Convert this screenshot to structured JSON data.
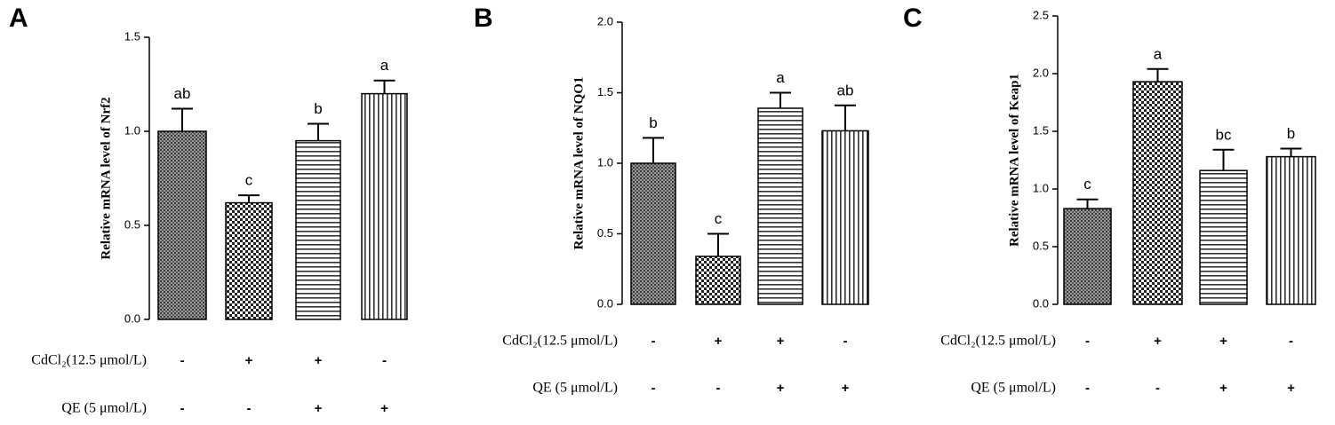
{
  "chart_data": [
    {
      "type": "bar",
      "panel": "A",
      "y_label": "Relative mRNA level of Nrf2",
      "ylim": [
        0,
        1.5
      ],
      "yticks": [
        {
          "value": 0,
          "label": "0.0"
        },
        0.5,
        {
          "value": 1,
          "label": "1.0"
        },
        1.5
      ],
      "values": [
        1.0,
        0.62,
        0.95,
        1.2
      ],
      "errors": [
        0.12,
        0.04,
        0.09,
        0.07
      ],
      "annotations": [
        "ab",
        "c",
        "b",
        "a"
      ],
      "patterns": [
        "dots",
        "checker",
        "hlines",
        "vlines"
      ],
      "treatments": [
        {
          "label": "CdCl₂(12.5 μmol/L)",
          "signs": [
            "-",
            "+",
            "+",
            "-"
          ]
        },
        {
          "label": "QE (5 μmol/L)",
          "signs": [
            "-",
            "-",
            "+",
            "+"
          ]
        }
      ]
    },
    {
      "type": "bar",
      "panel": "B",
      "y_label": "Relative mRNA level of NQO1",
      "ylim": [
        0,
        2
      ],
      "yticks": [
        {
          "value": 0,
          "label": "0.0"
        },
        0.5,
        {
          "value": 1,
          "label": "1.0"
        },
        1.5,
        {
          "value": 2,
          "label": "2.0"
        }
      ],
      "values": [
        1.0,
        0.34,
        1.39,
        1.23
      ],
      "errors": [
        0.18,
        0.16,
        0.11,
        0.18
      ],
      "annotations": [
        "b",
        "c",
        "a",
        "ab"
      ],
      "patterns": [
        "dots",
        "checker",
        "hlines",
        "vlines"
      ],
      "treatments": [
        {
          "label": "CdCl₂(12.5 μmol/L)",
          "signs": [
            "-",
            "+",
            "+",
            "-"
          ]
        },
        {
          "label": "QE (5 μmol/L)",
          "signs": [
            "-",
            "-",
            "+",
            "+"
          ]
        }
      ]
    },
    {
      "type": "bar",
      "panel": "C",
      "y_label": "Relative mRNA level of Keap1",
      "ylim": [
        0,
        2.5
      ],
      "yticks": [
        {
          "value": 0,
          "label": "0.0"
        },
        0.5,
        {
          "value": 1,
          "label": "1.0"
        },
        1.5,
        {
          "value": 2,
          "label": "2.0"
        },
        2.5
      ],
      "values": [
        0.83,
        1.93,
        1.16,
        1.28
      ],
      "errors": [
        0.08,
        0.11,
        0.18,
        0.07
      ],
      "annotations": [
        "c",
        "a",
        "bc",
        "b"
      ],
      "patterns": [
        "dots",
        "checker",
        "hlines",
        "vlines"
      ],
      "treatments": [
        {
          "label": "CdCl₂(12.5 μmol/L)",
          "signs": [
            "-",
            "+",
            "+",
            "-"
          ]
        },
        {
          "label": "QE (5 μmol/L)",
          "signs": [
            "-",
            "-",
            "+",
            "+"
          ]
        }
      ]
    }
  ]
}
